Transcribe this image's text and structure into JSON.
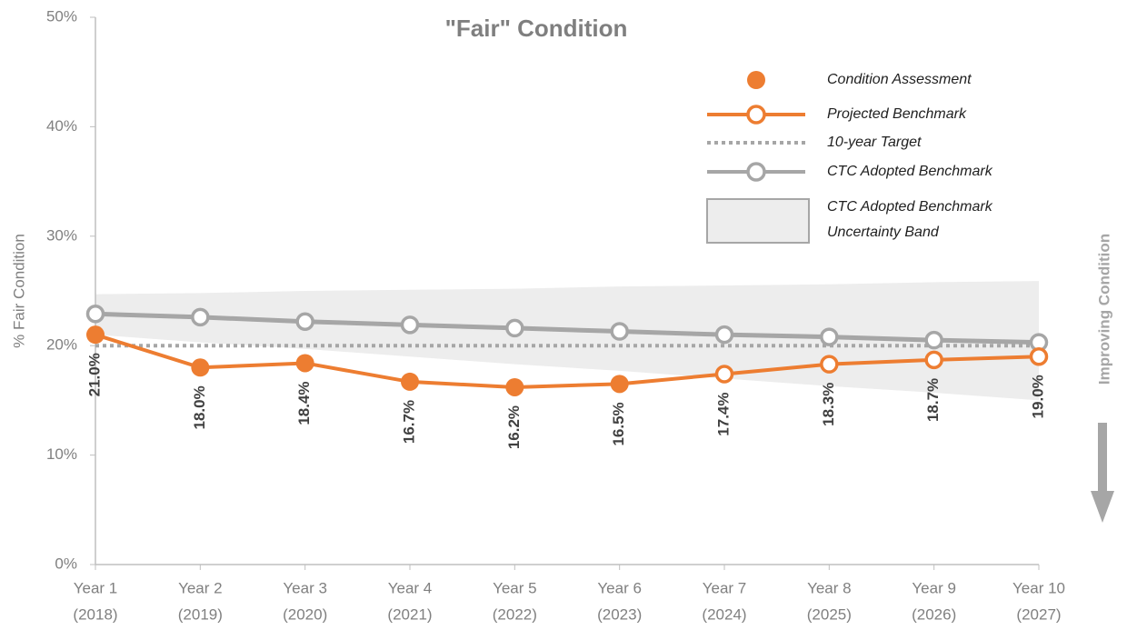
{
  "chart_data": {
    "type": "line",
    "title": "\"Fair\" Condition",
    "y_label": "% Fair Condition",
    "annotation": "Improving Condition",
    "categories": [
      "Year 1",
      "Year 2",
      "Year 3",
      "Year 4",
      "Year 5",
      "Year 6",
      "Year 7",
      "Year 8",
      "Year 9",
      "Year 10"
    ],
    "category_years": [
      "(2018)",
      "(2019)",
      "(2020)",
      "(2021)",
      "(2022)",
      "(2023)",
      "(2024)",
      "(2025)",
      "(2026)",
      "(2027)"
    ],
    "ylim": [
      0,
      50
    ],
    "yticks": [
      {
        "value": 0,
        "label": "0%"
      },
      {
        "value": 10,
        "label": "10%"
      },
      {
        "value": 20,
        "label": "20%"
      },
      {
        "value": 30,
        "label": "30%"
      },
      {
        "value": 40,
        "label": "40%"
      },
      {
        "value": 50,
        "label": "50%"
      }
    ],
    "series": [
      {
        "name": "Condition Assessment",
        "color": "#ed7d31",
        "marker": "filled",
        "values": [
          21.0,
          18.0,
          18.4,
          16.7,
          16.2,
          16.5,
          null,
          null,
          null,
          null
        ],
        "value_labels": [
          "21.0%",
          "18.0%",
          "18.4%",
          "16.7%",
          "16.2%",
          "16.5%",
          null,
          null,
          null,
          null
        ]
      },
      {
        "name": "Projected Benchmark",
        "color": "#ed7d31",
        "marker": "hollow",
        "values": [
          null,
          null,
          null,
          null,
          null,
          null,
          17.4,
          18.3,
          18.7,
          19.0
        ],
        "value_labels": [
          null,
          null,
          null,
          null,
          null,
          null,
          "17.4%",
          "18.3%",
          "18.7%",
          "19.0%"
        ]
      },
      {
        "name": "10-year Target",
        "color": "#a6a6a6",
        "marker": "dotted",
        "values": [
          20,
          20,
          20,
          20,
          20,
          20,
          20,
          20,
          20,
          20
        ]
      },
      {
        "name": "CTC Adopted Benchmark",
        "color": "#a6a6a6",
        "marker": "hollow",
        "values": [
          22.9,
          22.6,
          22.2,
          21.9,
          21.6,
          21.3,
          21.0,
          20.8,
          20.5,
          20.3
        ]
      }
    ],
    "band": {
      "name": "CTC Adopted Benchmark Uncertainty Band",
      "color": "#ededed",
      "upper": [
        24.7,
        24.8,
        25.0,
        25.1,
        25.2,
        25.4,
        25.5,
        25.6,
        25.8,
        25.9
      ],
      "lower": [
        21.0,
        20.3,
        19.7,
        19.0,
        18.3,
        17.7,
        17.0,
        16.3,
        15.7,
        15.0
      ]
    }
  }
}
